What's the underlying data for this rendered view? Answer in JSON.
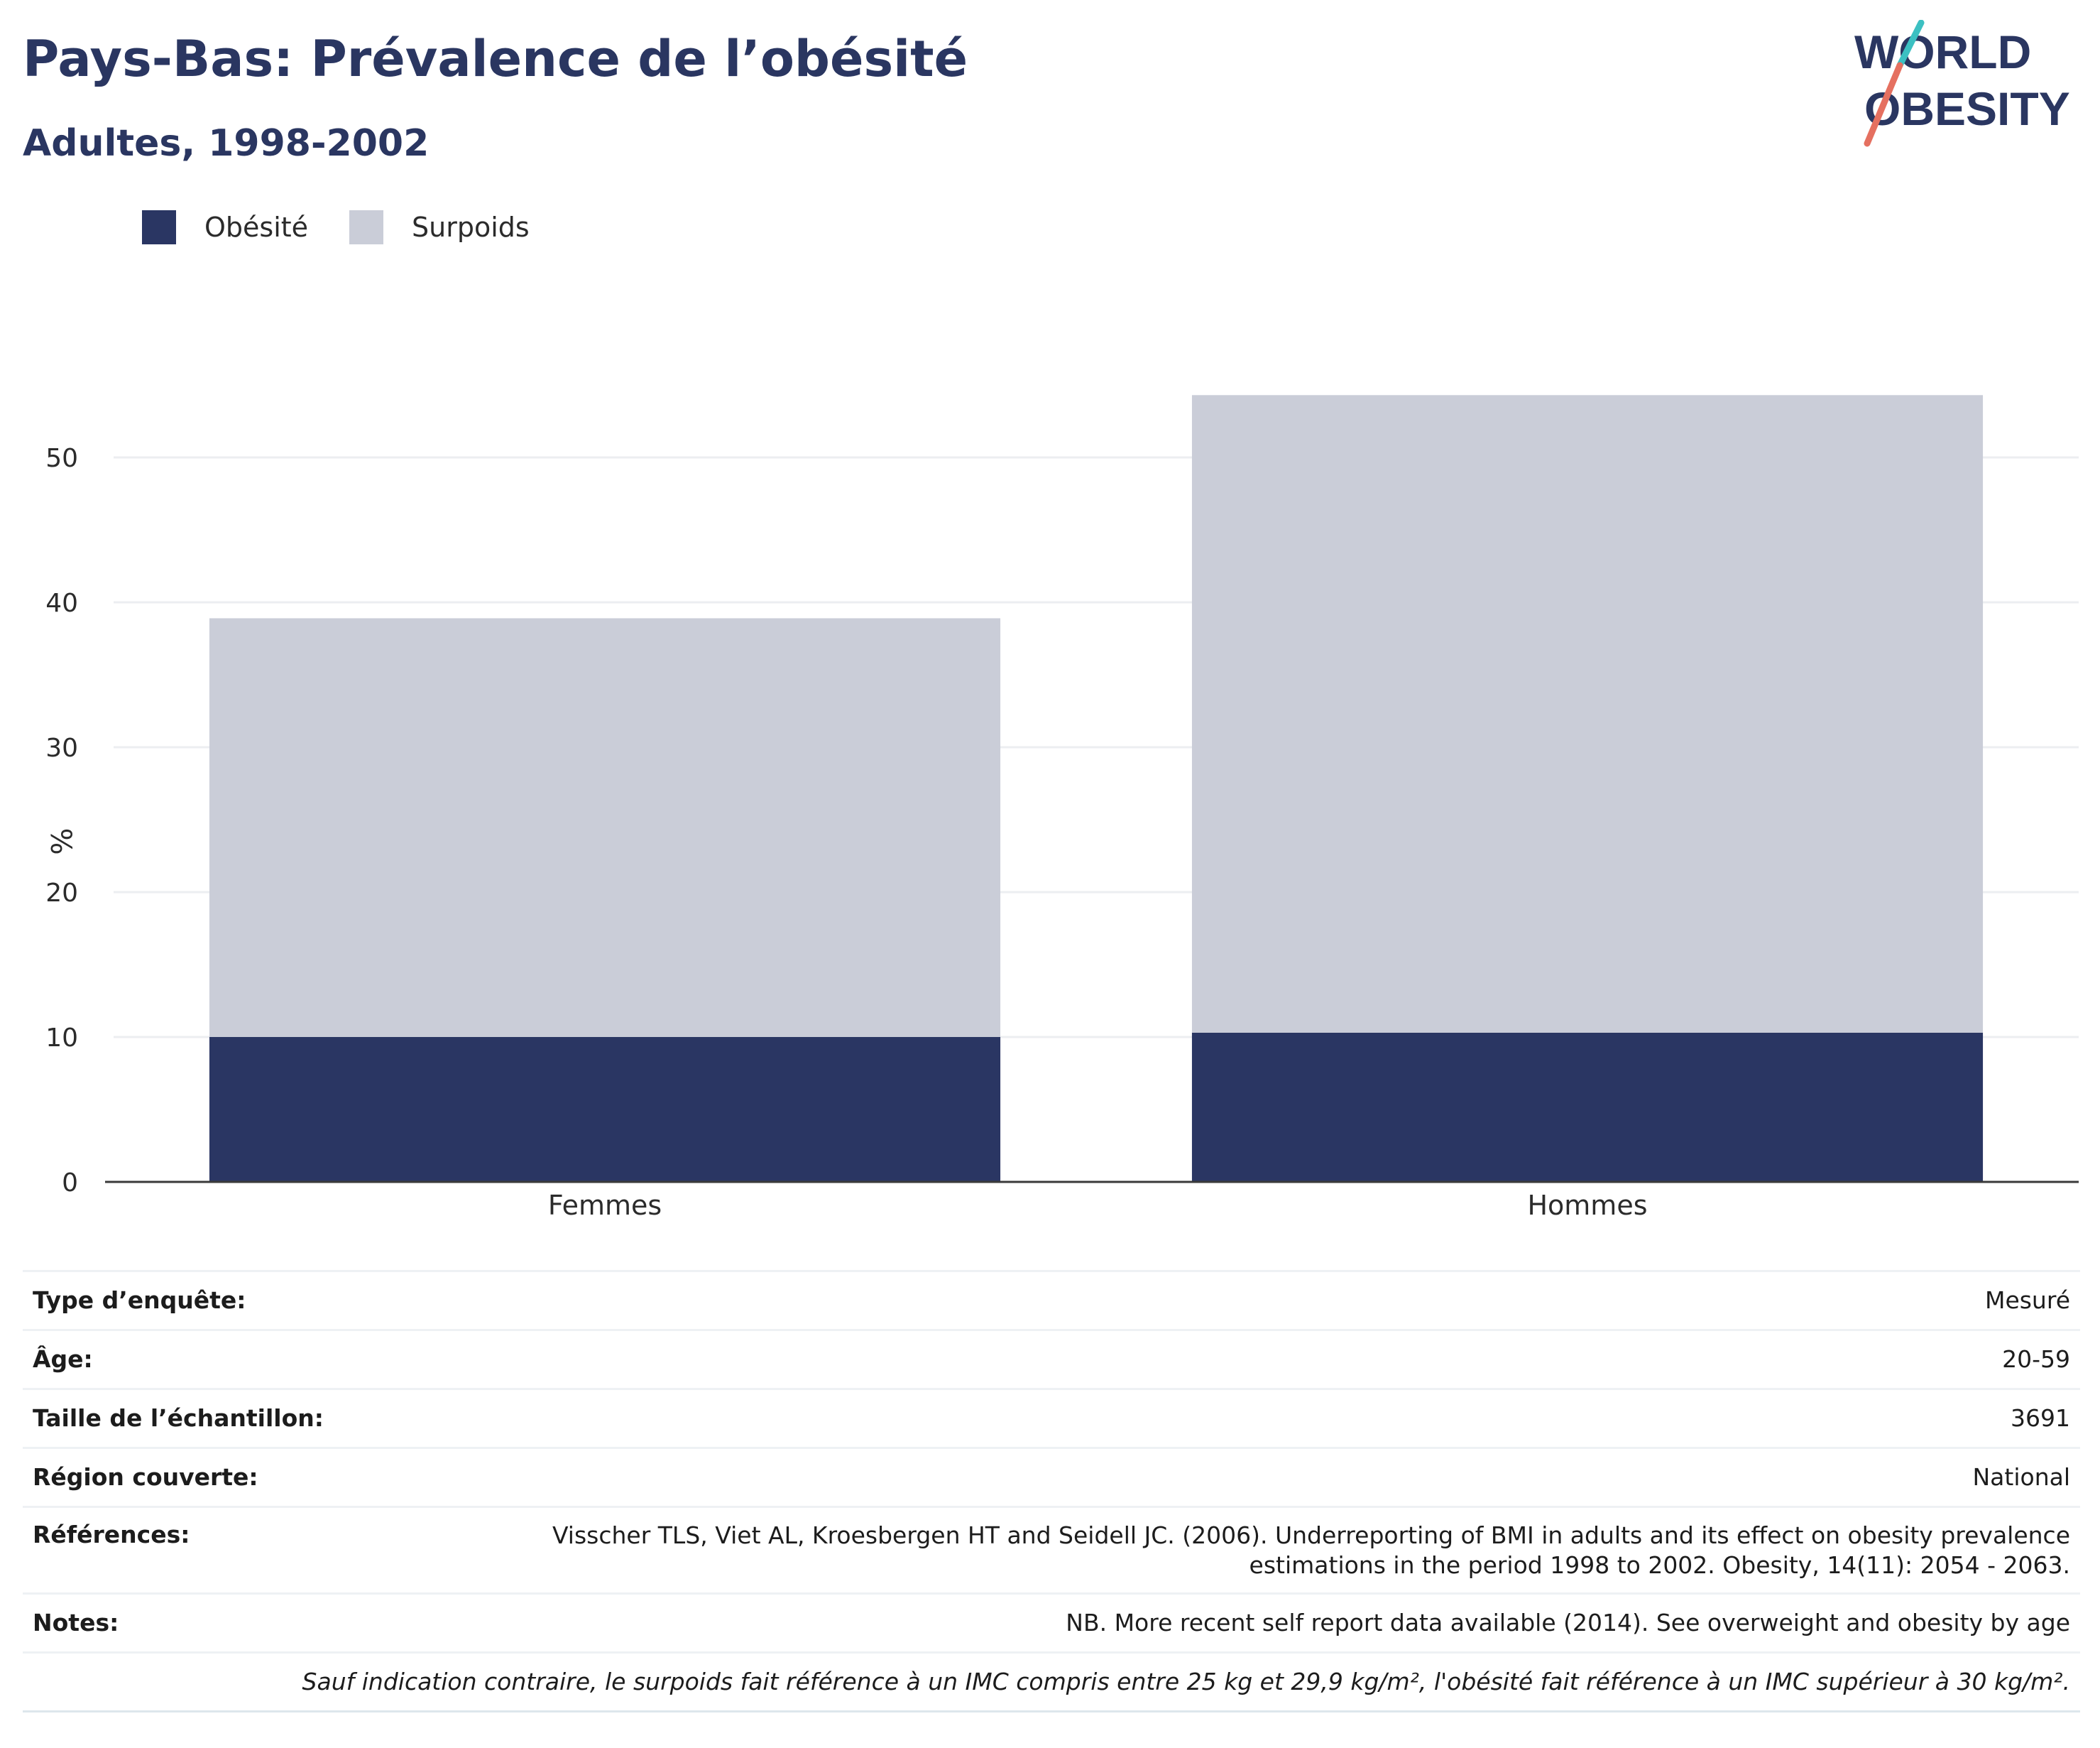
{
  "title": "Pays-Bas: Prévalence de l’obésité",
  "subtitle": "Adultes, 1998-2002",
  "logo": {
    "line1": "WORLD",
    "line2": "OBESITY"
  },
  "colors": {
    "obesity": "#2a3663",
    "overweight": "#cacdd8",
    "text": "#2a3661",
    "logo_teal": "#3cc0c2",
    "logo_coral": "#e57060"
  },
  "legend": [
    {
      "label": "Obésité",
      "color": "#2a3663"
    },
    {
      "label": "Surpoids",
      "color": "#cacdd8"
    }
  ],
  "chart_data": {
    "type": "bar",
    "stacked": true,
    "title": "Pays-Bas: Prévalence de l’obésité",
    "subtitle": "Adultes, 1998-2002",
    "categories": [
      "Femmes",
      "Hommes"
    ],
    "series": [
      {
        "name": "Obésité",
        "values": [
          10.0,
          10.3
        ]
      },
      {
        "name": "Surpoids",
        "values": [
          28.9,
          44.0
        ]
      }
    ],
    "totals": [
      38.9,
      54.3
    ],
    "xlabel": "",
    "ylabel": "%",
    "ylim": [
      0,
      57
    ],
    "yticks": [
      0,
      10,
      20,
      30,
      40,
      50
    ],
    "grid": true,
    "legend_position": "top-left"
  },
  "info": {
    "rows": [
      {
        "label": "Type d’enquête:",
        "value": "Mesuré"
      },
      {
        "label": "Âge:",
        "value": "20-59"
      },
      {
        "label": "Taille de l’échantillon:",
        "value": "3691"
      },
      {
        "label": "Région couverte:",
        "value": "National"
      },
      {
        "label": "Références:",
        "value": "Visscher TLS, Viet AL, Kroesbergen HT and Seidell JC. (2006). Underreporting of BMI in adults and its effect on obesity prevalence estimations in the period 1998 to 2002. Obesity, 14(11): 2054 - 2063."
      },
      {
        "label": "Notes:",
        "value": "NB. More recent self report data available (2014). See overweight and obesity by age"
      }
    ],
    "footnote": "Sauf indication contraire, le surpoids fait référence à un IMC compris entre 25 kg et 29,9 kg/m², l'obésité fait référence à un IMC supérieur à 30 kg/m²."
  }
}
